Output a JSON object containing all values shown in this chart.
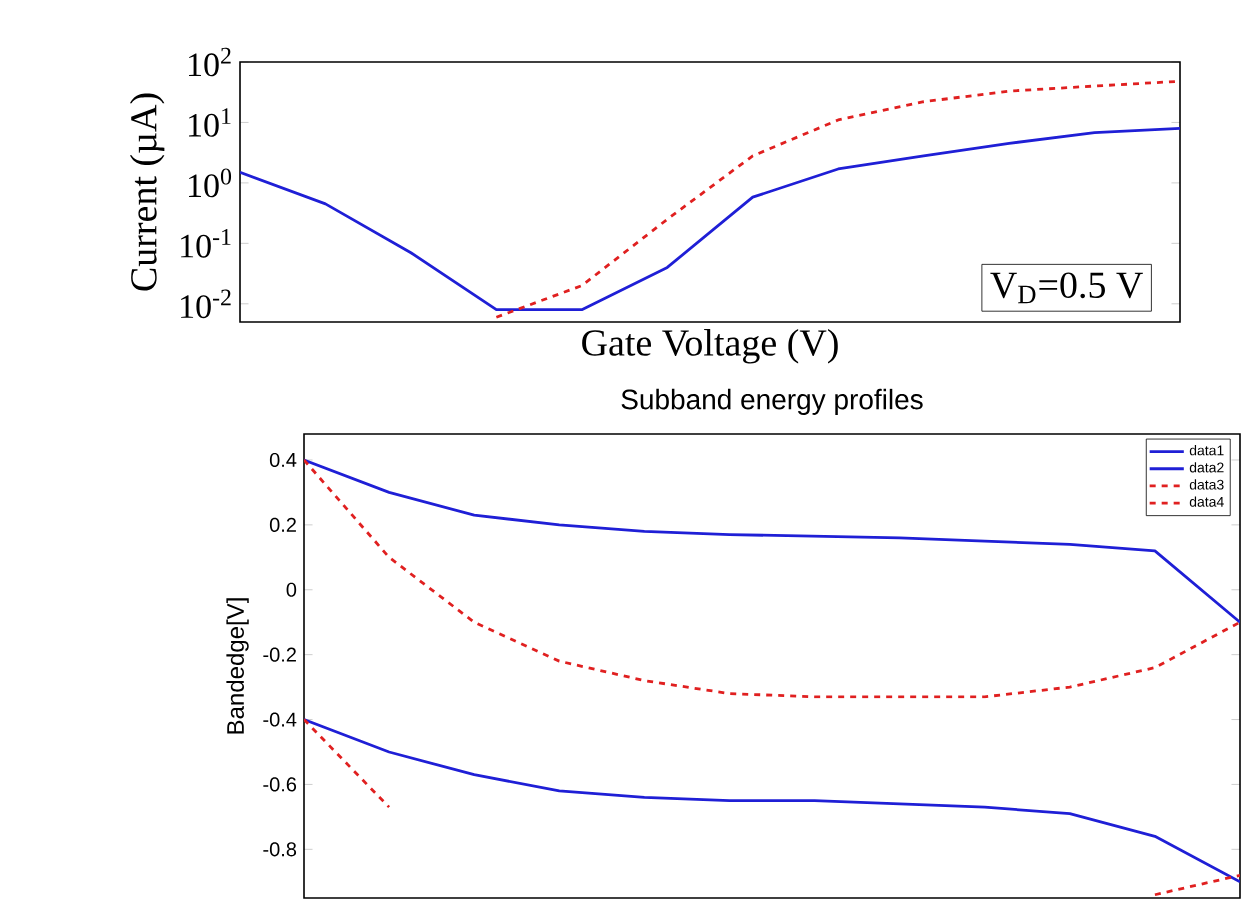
{
  "chart_data": [
    {
      "type": "line",
      "ylabel": "Current  (µA)",
      "xlabel": "Gate Voltage  (V)",
      "annotations": [
        "V$_{D}$=0.5 V"
      ],
      "log": "y",
      "tick_labels": "y",
      "categories": [
        null,
        null,
        null,
        null,
        null,
        null,
        null,
        null,
        null,
        null,
        null,
        null
      ],
      "ylim": [
        0.005,
        100
      ],
      "yticks": [
        {
          "value": 100,
          "label": "10$^{2}$"
        },
        {
          "value": 10,
          "label": "10$^{1}$"
        },
        {
          "value": 1,
          "label": "10$^{0}$"
        },
        {
          "value": 0.1,
          "label": "10$^{-1}$"
        },
        {
          "value": 0.01,
          "label": "10$^{-2}$"
        }
      ],
      "series": [
        {
          "color": "#1f1fd6",
          "line_style": "solid",
          "values": [
            1.5,
            0.45,
            0.07,
            0.008,
            0.008,
            0.04,
            0.58,
            1.7,
            2.8,
            4.5,
            6.8,
            8
          ]
        },
        {
          "color": "#e02020",
          "line_style": "dashed",
          "values": [
            null,
            null,
            null,
            0.006,
            0.02,
            0.25,
            2.8,
            11,
            22,
            33,
            40,
            48
          ]
        }
      ]
    },
    {
      "type": "line",
      "title": "Subband energy profiles",
      "ylabel": "Bandedge[V]",
      "tick_labels": "y",
      "legend": "top right",
      "categories": [
        null,
        null,
        null,
        null,
        null,
        null,
        null,
        null,
        null,
        null,
        null,
        null
      ],
      "ylim": [
        -0.95,
        0.48
      ],
      "yticks": [
        0.4,
        0.2,
        0,
        -0.2,
        -0.4,
        -0.6,
        -0.8
      ],
      "series": [
        {
          "name": "data1",
          "color": "#1f1fd6",
          "line_style": "solid",
          "values": [
            0.4,
            0.3,
            0.23,
            0.2,
            0.18,
            0.17,
            0.165,
            0.16,
            0.15,
            0.14,
            0.12,
            -0.1
          ]
        },
        {
          "name": "data2",
          "color": "#1f1fd6",
          "line_style": "solid",
          "values": [
            -0.4,
            -0.5,
            -0.57,
            -0.62,
            -0.64,
            -0.65,
            -0.65,
            -0.66,
            -0.67,
            -0.69,
            -0.76,
            -0.9
          ]
        },
        {
          "name": "data3",
          "color": "#e02020",
          "line_style": "dashed",
          "values": [
            0.4,
            0.1,
            -0.1,
            -0.22,
            -0.28,
            -0.32,
            -0.33,
            -0.33,
            -0.33,
            -0.3,
            -0.24,
            -0.1
          ]
        },
        {
          "name": "data4",
          "color": "#e02020",
          "line_style": "dashed",
          "values": [
            -0.4,
            -0.67,
            null,
            null,
            null,
            null,
            null,
            null,
            null,
            null,
            -0.94,
            -0.88
          ]
        }
      ]
    }
  ]
}
